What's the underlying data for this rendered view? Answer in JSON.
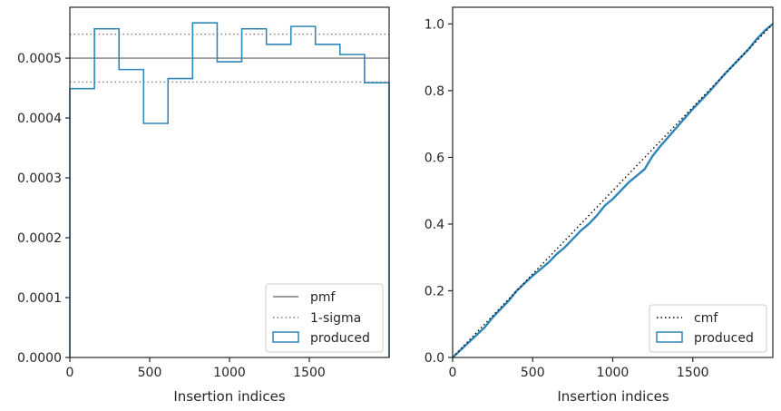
{
  "chart_data": [
    {
      "type": "histogram-step",
      "xlabel": "Insertion indices",
      "ylabel": "",
      "xlim": [
        0,
        2000
      ],
      "ylim": [
        0,
        0.000585
      ],
      "xticks": [
        0,
        500,
        1000,
        1500
      ],
      "xtick_labels": [
        "0",
        "500",
        "1000",
        "1500"
      ],
      "yticks": [
        0,
        0.0001,
        0.0002,
        0.0003,
        0.0004,
        0.0005
      ],
      "ytick_labels": [
        "0.0000",
        "0.0001",
        "0.0002",
        "0.0003",
        "0.0004",
        "0.0005"
      ],
      "grid": false,
      "legend_position": "lower-right",
      "bin_edges": [
        0,
        154,
        308,
        462,
        615,
        769,
        923,
        1077,
        1231,
        1385,
        1538,
        1692,
        1846,
        2000
      ],
      "series": [
        {
          "name": "produced",
          "style": "step",
          "color": "#2e86b9",
          "values": [
            0.000449,
            0.000549,
            0.000481,
            0.000391,
            0.000466,
            0.000559,
            0.000494,
            0.000549,
            0.000523,
            0.000553,
            0.000523,
            0.000506,
            0.000459
          ]
        },
        {
          "name": "pmf",
          "style": "solid",
          "color": "#7f7f7f",
          "values": [
            0.0005
          ]
        },
        {
          "name": "1-sigma",
          "style": "dotted",
          "color": "#7f7f7f",
          "values": [
            0.00054,
            0.00046
          ]
        }
      ]
    },
    {
      "type": "line",
      "xlabel": "Insertion indices",
      "ylabel": "",
      "xlim": [
        0,
        2000
      ],
      "ylim": [
        0,
        1.05
      ],
      "xticks": [
        0,
        500,
        1000,
        1500
      ],
      "xtick_labels": [
        "0",
        "500",
        "1000",
        "1500"
      ],
      "yticks": [
        0,
        0.2,
        0.4,
        0.6,
        0.8,
        1.0
      ],
      "ytick_labels": [
        "0.0",
        "0.2",
        "0.4",
        "0.6",
        "0.8",
        "1.0"
      ],
      "grid": false,
      "legend_position": "lower-right",
      "series": [
        {
          "name": "cmf",
          "style": "dotted",
          "color": "#000000",
          "x": [
            0,
            2000
          ],
          "y": [
            0,
            1.0
          ]
        },
        {
          "name": "produced",
          "style": "solid",
          "color": "#2e86b9",
          "x": [
            0,
            100,
            200,
            250,
            300,
            350,
            400,
            500,
            600,
            650,
            700,
            800,
            850,
            900,
            950,
            1000,
            1050,
            1100,
            1150,
            1200,
            1250,
            1300,
            1400,
            1500,
            1600,
            1700,
            1800,
            1850,
            1900,
            1950,
            2000
          ],
          "y": [
            0,
            0.045,
            0.09,
            0.12,
            0.145,
            0.17,
            0.2,
            0.245,
            0.285,
            0.31,
            0.33,
            0.38,
            0.4,
            0.425,
            0.455,
            0.475,
            0.5,
            0.525,
            0.545,
            0.565,
            0.605,
            0.635,
            0.69,
            0.745,
            0.795,
            0.85,
            0.9,
            0.925,
            0.955,
            0.98,
            1.0
          ]
        }
      ]
    }
  ]
}
